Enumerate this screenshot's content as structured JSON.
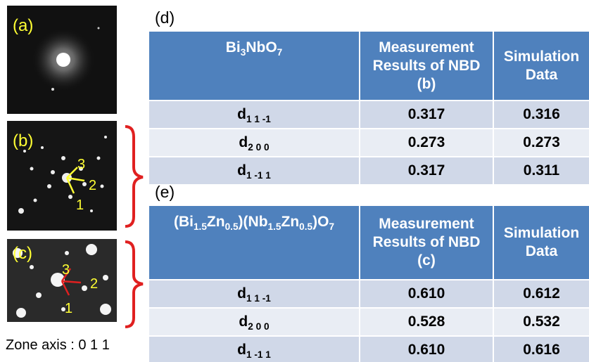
{
  "images": [
    {
      "label": "(a)"
    },
    {
      "label": "(b)",
      "markers": [
        "3",
        "2",
        "1"
      ]
    },
    {
      "label": "(c)",
      "markers": [
        "3",
        "2",
        "1"
      ]
    }
  ],
  "caption": "Zone axis : 0 1 1",
  "tables": [
    {
      "label": "(d)",
      "header": [
        [
          {
            "text": "Bi"
          },
          {
            "sub": "3"
          },
          {
            "text": "NbO"
          },
          {
            "sub": "7"
          }
        ],
        "Measurement Results of NBD (b)",
        "Simulation Data"
      ],
      "rows": [
        [
          [
            {
              "text": "d"
            },
            {
              "sub": "1 1 -1"
            }
          ],
          "0.317",
          "0.316"
        ],
        [
          [
            {
              "text": "d"
            },
            {
              "sub": "2 0 0"
            }
          ],
          "0.273",
          "0.273"
        ],
        [
          [
            {
              "text": "d"
            },
            {
              "sub": "1 -1 1"
            }
          ],
          "0.317",
          "0.311"
        ]
      ]
    },
    {
      "label": "(e)",
      "header": [
        [
          {
            "text": "(Bi"
          },
          {
            "sub": "1.5"
          },
          {
            "text": "Zn"
          },
          {
            "sub": "0.5"
          },
          {
            "text": ")(Nb"
          },
          {
            "sub": "1.5"
          },
          {
            "text": "Zn"
          },
          {
            "sub": "0.5"
          },
          {
            "text": ")O"
          },
          {
            "sub": "7"
          }
        ],
        "Measurement Results of NBD (c)",
        "Simulation Data"
      ],
      "rows": [
        [
          [
            {
              "text": "d"
            },
            {
              "sub": "1 1 -1"
            }
          ],
          "0.610",
          "0.612"
        ],
        [
          [
            {
              "text": "d"
            },
            {
              "sub": "2 0 0"
            }
          ],
          "0.528",
          "0.532"
        ],
        [
          [
            {
              "text": "d"
            },
            {
              "sub": "1 -1 1"
            }
          ],
          "0.610",
          "0.616"
        ]
      ]
    }
  ]
}
